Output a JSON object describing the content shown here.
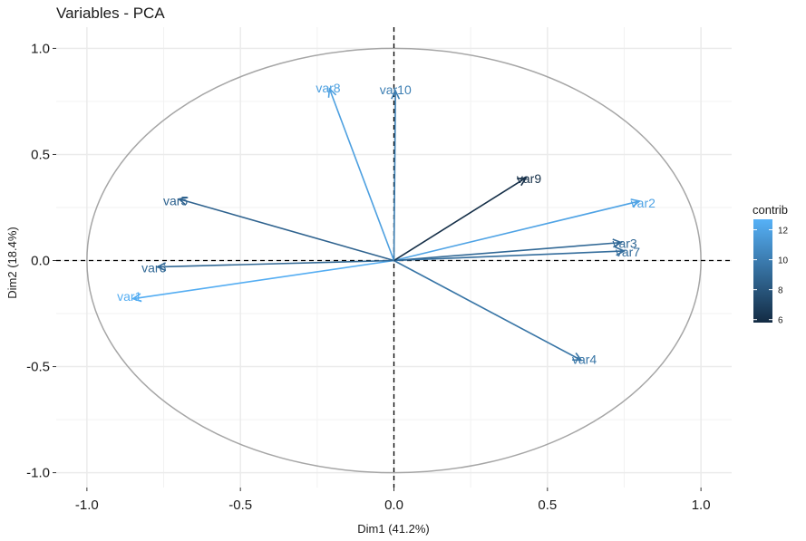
{
  "chart_data": {
    "type": "scatter",
    "subtype": "pca-correlation-circle",
    "title": "Variables - PCA",
    "xlabel": "Dim1 (41.2%)",
    "ylabel": "Dim2 (18.4%)",
    "xlim": [
      -1.1,
      1.1
    ],
    "ylim": [
      -1.07,
      1.1
    ],
    "xticks": [
      -1.0,
      -0.5,
      0.0,
      0.5,
      1.0
    ],
    "xtick_labels": [
      "-1.0",
      "-0.5",
      "0.0",
      "0.5",
      "1.0"
    ],
    "yticks": [
      -1.0,
      -0.5,
      0.0,
      0.5,
      1.0
    ],
    "ytick_labels": [
      "-1.0",
      "-0.5",
      "0.0",
      "0.5",
      "1.0"
    ],
    "grid": true,
    "unit_circle": true,
    "legend": {
      "title": "contrib",
      "type": "colorbar",
      "position": "right",
      "range": [
        5.8,
        12.7
      ],
      "ticks": [
        6,
        8,
        10,
        12
      ],
      "tick_labels": [
        "6",
        "8",
        "10",
        "12"
      ],
      "color_low": "#132B43",
      "color_high": "#56B1F7"
    },
    "variables": [
      {
        "label": "var1",
        "x": -0.85,
        "y": -0.18,
        "contrib": 12.5
      },
      {
        "label": "var2",
        "x": 0.8,
        "y": 0.28,
        "contrib": 12.0
      },
      {
        "label": "var3",
        "x": 0.74,
        "y": 0.085,
        "contrib": 9.0
      },
      {
        "label": "var4",
        "x": 0.61,
        "y": -0.47,
        "contrib": 9.6
      },
      {
        "label": "var5",
        "x": -0.7,
        "y": 0.29,
        "contrib": 8.7
      },
      {
        "label": "var6",
        "x": -0.77,
        "y": -0.03,
        "contrib": 9.0
      },
      {
        "label": "var7",
        "x": 0.75,
        "y": 0.045,
        "contrib": 9.2
      },
      {
        "label": "var8",
        "x": -0.21,
        "y": 0.81,
        "contrib": 11.8
      },
      {
        "label": "var9",
        "x": 0.43,
        "y": 0.39,
        "contrib": 6.0
      },
      {
        "label": "var10",
        "x": 0.005,
        "y": 0.8,
        "contrib": 10.1
      }
    ]
  }
}
